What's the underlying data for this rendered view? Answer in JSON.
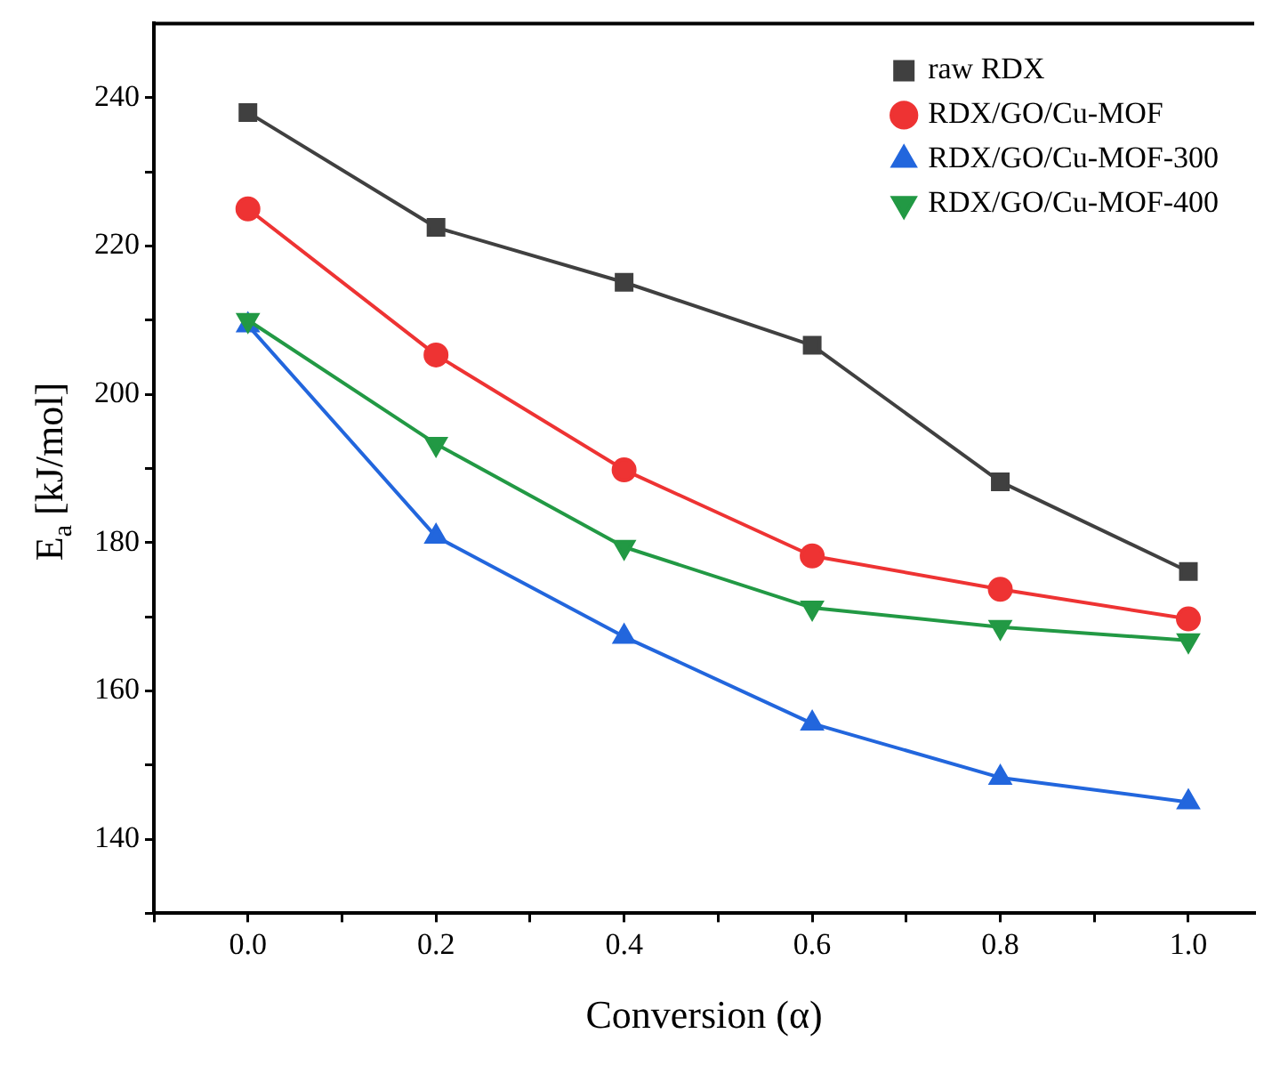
{
  "chart_data": {
    "type": "line",
    "xlabel": "Conversion (α)",
    "ylabel": "E$_{a}$ [kJ/mol]",
    "x": [
      0,
      0.2,
      0.4,
      0.6,
      0.8,
      1.0
    ],
    "series": [
      {
        "name": "raw RDX",
        "color": "#404040",
        "marker": "square",
        "values": [
          238,
          222.5,
          215.1,
          206.6,
          188.2,
          176.1
        ]
      },
      {
        "name": "RDX/GO/Cu-MOF",
        "color": "#ee3333",
        "marker": "circle",
        "values": [
          225,
          205.3,
          189.8,
          178.2,
          173.7,
          169.7
        ]
      },
      {
        "name": "RDX/GO/Cu-MOF-300",
        "color": "#2266dd",
        "marker": "triangle",
        "values": [
          209.3,
          180.8,
          167.3,
          155.6,
          148.3,
          145
        ]
      },
      {
        "name": "RDX/GO/Cu-MOF-400",
        "color": "#229944",
        "marker": "triangle-down",
        "values": [
          210,
          193.3,
          179.4,
          171.2,
          168.6,
          166.8
        ]
      }
    ],
    "xlim": [
      -0.1,
      1.07
    ],
    "xticks": [
      {
        "value": -0.1,
        "label": null
      },
      {
        "value": 0,
        "label": "0.0"
      },
      {
        "value": 0.1,
        "label": null
      },
      {
        "value": 0.2,
        "label": "0.2"
      },
      {
        "value": 0.3,
        "label": null
      },
      {
        "value": 0.4,
        "label": "0.4"
      },
      {
        "value": 0.5,
        "label": null
      },
      {
        "value": 0.6,
        "label": "0.6"
      },
      {
        "value": 0.7,
        "label": null
      },
      {
        "value": 0.8,
        "label": "0.8"
      },
      {
        "value": 0.9,
        "label": null
      },
      {
        "value": 1.0,
        "label": "1.0"
      }
    ],
    "ylim": [
      130,
      250
    ],
    "yticks": [
      {
        "value": 130,
        "label": null
      },
      140,
      {
        "value": 150,
        "label": null
      },
      160,
      {
        "value": 170,
        "label": null
      },
      180,
      {
        "value": 190,
        "label": null
      },
      200,
      {
        "value": 210,
        "label": null
      },
      220,
      {
        "value": 230,
        "label": null
      },
      240
    ],
    "grid": false,
    "legend": "top right",
    "line_style": "solid"
  }
}
